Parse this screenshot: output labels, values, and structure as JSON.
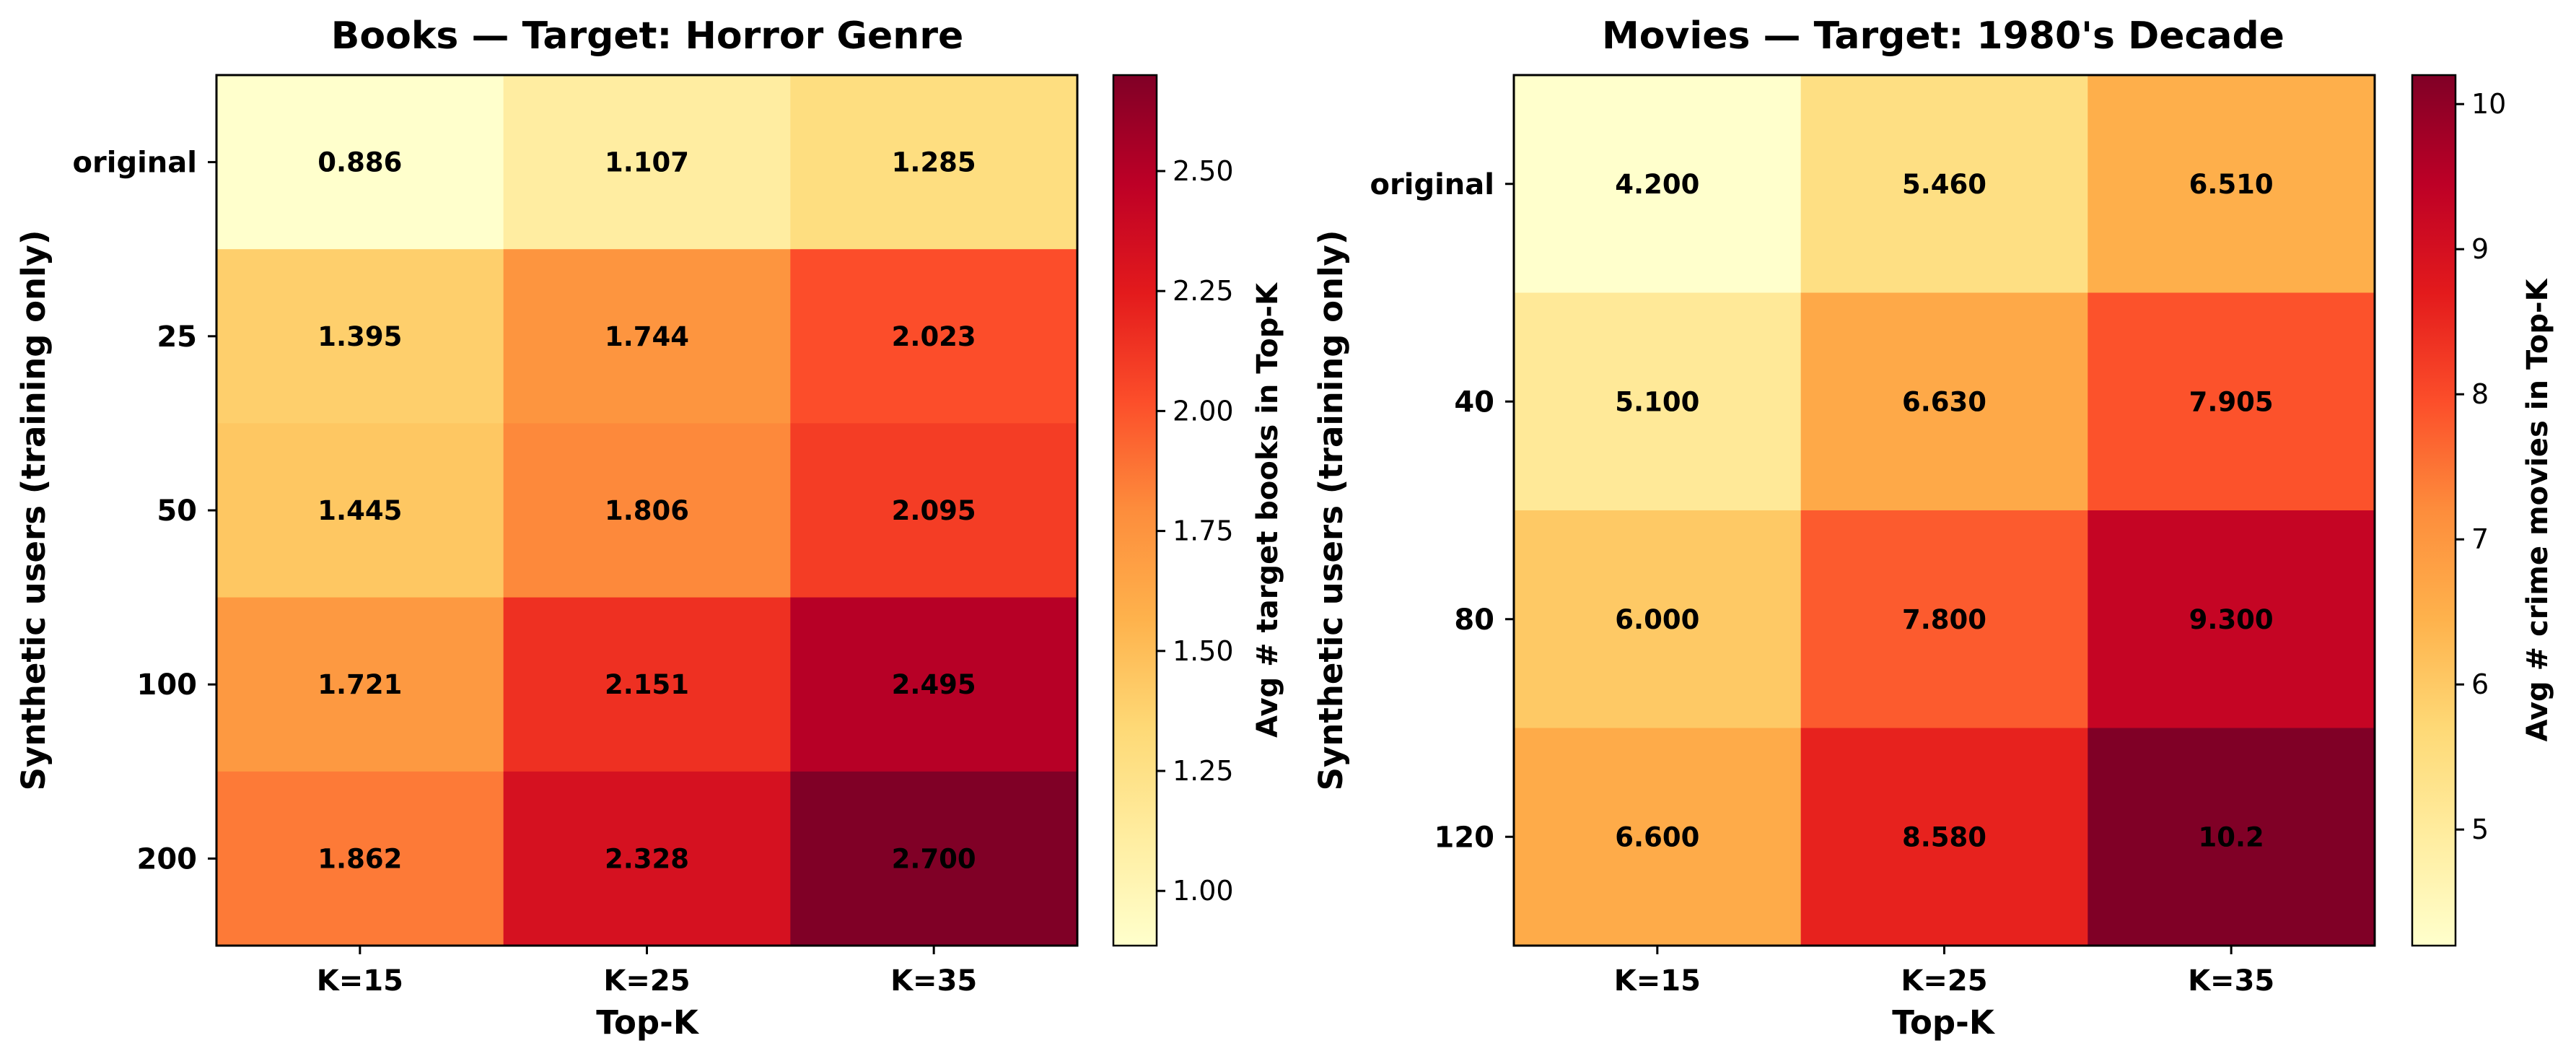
{
  "chart_data": [
    {
      "type": "heatmap",
      "title": "Books — Target: Horror Genre",
      "xlabel": "Top-K",
      "ylabel": "Synthetic users (training only)",
      "x_categories": [
        "K=15",
        "K=25",
        "K=35"
      ],
      "y_categories": [
        "original",
        "25",
        "50",
        "100",
        "200"
      ],
      "values": [
        [
          0.886,
          1.107,
          1.285
        ],
        [
          1.395,
          1.744,
          2.023
        ],
        [
          1.445,
          1.806,
          2.095
        ],
        [
          1.721,
          2.151,
          2.495
        ],
        [
          1.862,
          2.328,
          2.7
        ]
      ],
      "value_labels": [
        [
          "0.886",
          "1.107",
          "1.285"
        ],
        [
          "1.395",
          "1.744",
          "2.023"
        ],
        [
          "1.445",
          "1.806",
          "2.095"
        ],
        [
          "1.721",
          "2.151",
          "2.495"
        ],
        [
          "1.862",
          "2.328",
          "2.700"
        ]
      ],
      "colorbar": {
        "label": "Avg # target books in Top-K",
        "range": [
          0.886,
          2.7
        ],
        "ticks": [
          1.0,
          1.25,
          1.5,
          1.75,
          2.0,
          2.25,
          2.5
        ],
        "tick_labels": [
          "1.00",
          "1.25",
          "1.50",
          "1.75",
          "2.00",
          "2.25",
          "2.50"
        ],
        "colormap": "YlOrRd"
      }
    },
    {
      "type": "heatmap",
      "title": "Movies — Target: 1980's Decade",
      "xlabel": "Top-K",
      "ylabel": "Synthetic users (training only)",
      "x_categories": [
        "K=15",
        "K=25",
        "K=35"
      ],
      "y_categories": [
        "original",
        "40",
        "80",
        "120"
      ],
      "values": [
        [
          4.2,
          5.46,
          6.51
        ],
        [
          5.1,
          6.63,
          7.905
        ],
        [
          6.0,
          7.8,
          9.3
        ],
        [
          6.6,
          8.58,
          10.2
        ]
      ],
      "value_labels": [
        [
          "4.200",
          "5.460",
          "6.510"
        ],
        [
          "5.100",
          "6.630",
          "7.905"
        ],
        [
          "6.000",
          "7.800",
          "9.300"
        ],
        [
          "6.600",
          "8.580",
          "10.2"
        ]
      ],
      "colorbar": {
        "label": "Avg # crime movies in Top-K",
        "range": [
          4.2,
          10.2
        ],
        "ticks": [
          5,
          6,
          7,
          8,
          9,
          10
        ],
        "tick_labels": [
          "5",
          "6",
          "7",
          "8",
          "9",
          "10"
        ],
        "colormap": "YlOrRd"
      }
    }
  ]
}
